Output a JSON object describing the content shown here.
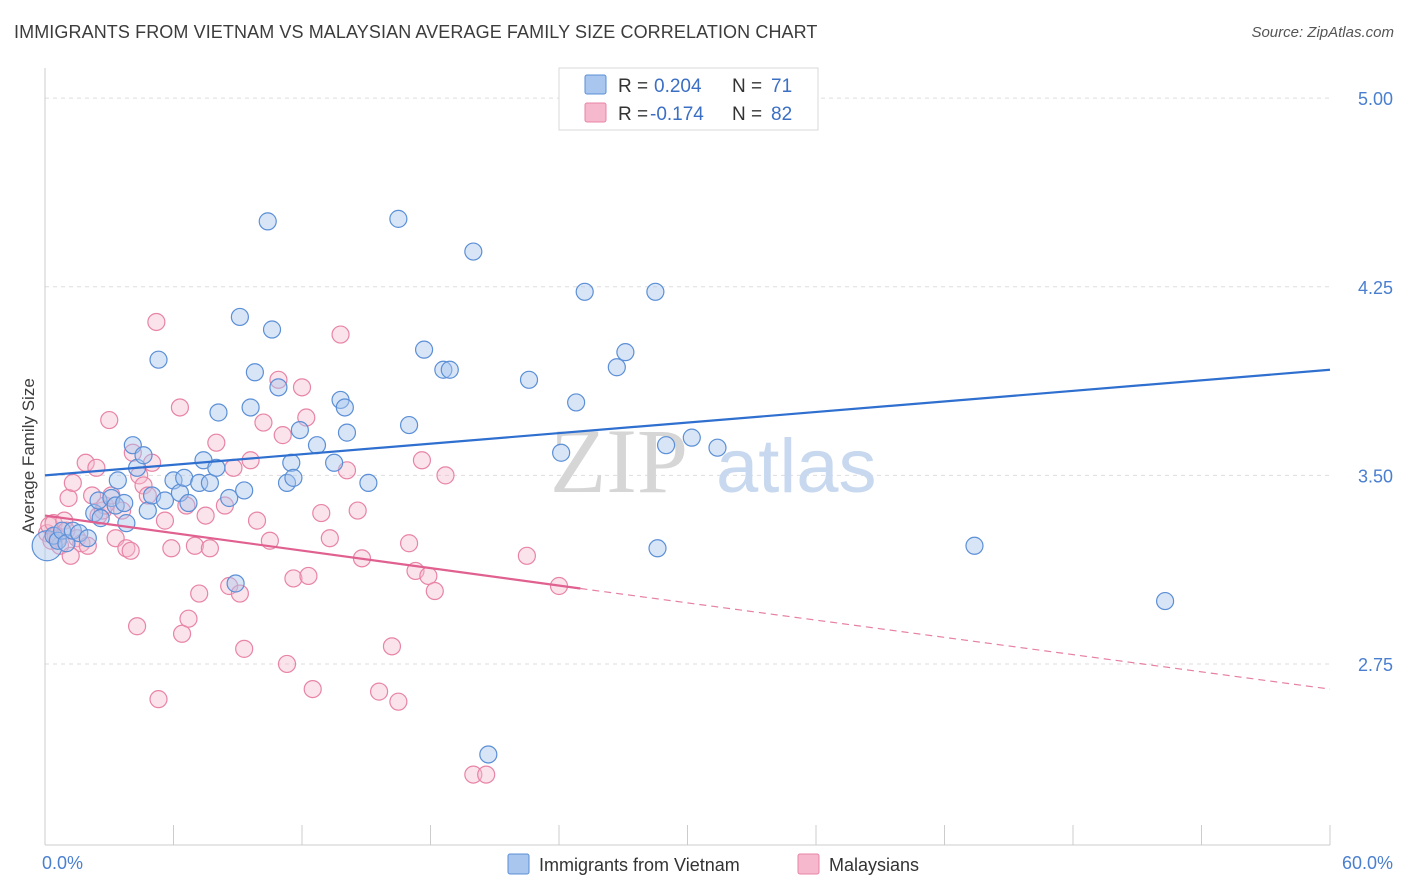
{
  "title": "IMMIGRANTS FROM VIETNAM VS MALAYSIAN AVERAGE FAMILY SIZE CORRELATION CHART",
  "source": "Source: ZipAtlas.com",
  "watermark": {
    "zip": "ZIP",
    "atlas": "atlas"
  },
  "colors": {
    "blue_fill": "#a9c6ee",
    "blue_stroke": "#5b8fd6",
    "blue_line": "#2f6fcf",
    "pink_fill": "#f5b8cc",
    "pink_stroke": "#e884a6",
    "pink_line": "#e0608f",
    "grid": "#dddddd",
    "axis_text": "#4a7fcf"
  },
  "legend": {
    "rows": [
      {
        "r_label": "R = ",
        "r_value": "0.204",
        "n_label": "N = ",
        "n_value": "71",
        "series": "blue"
      },
      {
        "r_label": "R = ",
        "r_value": "-0.174",
        "n_label": "N = ",
        "n_value": "82",
        "series": "pink"
      }
    ]
  },
  "chart_data": {
    "type": "scatter",
    "title": "IMMIGRANTS FROM VIETNAM VS MALAYSIAN AVERAGE FAMILY SIZE CORRELATION CHART",
    "xlabel": "",
    "ylabel": "Average Family Size",
    "xlim": [
      0,
      60
    ],
    "ylim": [
      2.03,
      5.12
    ],
    "x_tick_labels": [
      "0.0%",
      "60.0%"
    ],
    "y_ticks": [
      5.0,
      4.25,
      3.5,
      2.75
    ],
    "y_tick_labels": [
      "5.00",
      "4.25",
      "3.50",
      "2.75"
    ],
    "grid": true,
    "legend_position": "top-center",
    "series": [
      {
        "name": "Immigrants from Vietnam",
        "color": "blue",
        "trend": {
          "x": [
            0,
            60
          ],
          "y": [
            3.5,
            3.92
          ],
          "dashed_from": null
        },
        "points": [
          [
            0.1,
            3.22
          ],
          [
            0.4,
            3.26
          ],
          [
            0.6,
            3.24
          ],
          [
            0.8,
            3.28
          ],
          [
            1.0,
            3.23
          ],
          [
            1.3,
            3.28
          ],
          [
            1.6,
            3.27
          ],
          [
            2.0,
            3.25
          ],
          [
            2.3,
            3.35
          ],
          [
            2.5,
            3.4
          ],
          [
            2.6,
            3.33
          ],
          [
            3.1,
            3.41
          ],
          [
            3.3,
            3.38
          ],
          [
            3.4,
            3.48
          ],
          [
            3.7,
            3.39
          ],
          [
            3.8,
            3.31
          ],
          [
            4.1,
            3.62
          ],
          [
            4.3,
            3.53
          ],
          [
            4.6,
            3.58
          ],
          [
            4.8,
            3.36
          ],
          [
            5.0,
            3.42
          ],
          [
            5.3,
            3.96
          ],
          [
            5.6,
            3.4
          ],
          [
            6.0,
            3.48
          ],
          [
            6.3,
            3.43
          ],
          [
            6.5,
            3.49
          ],
          [
            6.7,
            3.39
          ],
          [
            7.2,
            3.47
          ],
          [
            7.4,
            3.56
          ],
          [
            7.7,
            3.47
          ],
          [
            8.0,
            3.53
          ],
          [
            8.1,
            3.75
          ],
          [
            8.6,
            3.41
          ],
          [
            8.9,
            3.07
          ],
          [
            9.1,
            4.13
          ],
          [
            9.3,
            3.44
          ],
          [
            9.6,
            3.77
          ],
          [
            9.8,
            3.91
          ],
          [
            10.4,
            4.51
          ],
          [
            10.6,
            4.08
          ],
          [
            10.9,
            3.85
          ],
          [
            11.3,
            3.47
          ],
          [
            11.5,
            3.55
          ],
          [
            11.6,
            3.49
          ],
          [
            11.9,
            3.68
          ],
          [
            12.7,
            3.62
          ],
          [
            13.5,
            3.55
          ],
          [
            13.8,
            3.8
          ],
          [
            14.0,
            3.77
          ],
          [
            14.1,
            3.67
          ],
          [
            15.1,
            3.47
          ],
          [
            16.5,
            4.52
          ],
          [
            17.0,
            3.7
          ],
          [
            17.7,
            4.0
          ],
          [
            18.6,
            3.92
          ],
          [
            18.9,
            3.92
          ],
          [
            20.0,
            4.39
          ],
          [
            20.7,
            2.39
          ],
          [
            22.6,
            3.88
          ],
          [
            24.1,
            3.59
          ],
          [
            24.8,
            3.79
          ],
          [
            25.2,
            4.23
          ],
          [
            26.7,
            3.93
          ],
          [
            27.1,
            3.99
          ],
          [
            28.5,
            4.23
          ],
          [
            28.6,
            3.21
          ],
          [
            29.0,
            3.62
          ],
          [
            30.2,
            3.65
          ],
          [
            31.4,
            3.61
          ],
          [
            43.4,
            3.22
          ],
          [
            52.3,
            3.0
          ]
        ]
      },
      {
        "name": "Malaysians",
        "color": "pink",
        "trend": {
          "x": [
            0,
            25
          ],
          "y": [
            3.34,
            3.05
          ],
          "dashed_to": [
            60,
            2.65
          ]
        },
        "points": [
          [
            0.1,
            3.27
          ],
          [
            0.2,
            3.3
          ],
          [
            0.3,
            3.24
          ],
          [
            0.4,
            3.31
          ],
          [
            0.5,
            3.26
          ],
          [
            0.6,
            3.25
          ],
          [
            0.7,
            3.22
          ],
          [
            0.9,
            3.32
          ],
          [
            1.0,
            3.28
          ],
          [
            1.1,
            3.41
          ],
          [
            1.2,
            3.18
          ],
          [
            1.3,
            3.47
          ],
          [
            1.5,
            3.25
          ],
          [
            1.7,
            3.23
          ],
          [
            1.9,
            3.55
          ],
          [
            2.0,
            3.22
          ],
          [
            2.2,
            3.42
          ],
          [
            2.4,
            3.53
          ],
          [
            2.5,
            3.34
          ],
          [
            2.7,
            3.36
          ],
          [
            2.8,
            3.38
          ],
          [
            3.0,
            3.72
          ],
          [
            3.1,
            3.42
          ],
          [
            3.3,
            3.25
          ],
          [
            3.6,
            3.36
          ],
          [
            3.8,
            3.21
          ],
          [
            4.0,
            3.2
          ],
          [
            4.1,
            3.59
          ],
          [
            4.3,
            2.9
          ],
          [
            4.4,
            3.5
          ],
          [
            4.6,
            3.46
          ],
          [
            4.8,
            3.42
          ],
          [
            5.0,
            3.55
          ],
          [
            5.2,
            4.11
          ],
          [
            5.3,
            2.61
          ],
          [
            5.6,
            3.32
          ],
          [
            5.9,
            3.21
          ],
          [
            6.3,
            3.77
          ],
          [
            6.4,
            2.87
          ],
          [
            6.6,
            3.38
          ],
          [
            6.7,
            2.93
          ],
          [
            7.0,
            3.22
          ],
          [
            7.2,
            3.03
          ],
          [
            7.5,
            3.34
          ],
          [
            7.7,
            3.21
          ],
          [
            8.0,
            3.63
          ],
          [
            8.4,
            3.38
          ],
          [
            8.6,
            3.06
          ],
          [
            8.8,
            3.53
          ],
          [
            9.1,
            3.03
          ],
          [
            9.3,
            2.81
          ],
          [
            9.6,
            3.56
          ],
          [
            9.9,
            3.32
          ],
          [
            10.2,
            3.71
          ],
          [
            10.5,
            3.24
          ],
          [
            10.9,
            3.88
          ],
          [
            11.1,
            3.66
          ],
          [
            11.3,
            2.75
          ],
          [
            11.6,
            3.09
          ],
          [
            12.0,
            3.85
          ],
          [
            12.2,
            3.73
          ],
          [
            12.3,
            3.1
          ],
          [
            12.5,
            2.65
          ],
          [
            12.9,
            3.35
          ],
          [
            13.3,
            3.25
          ],
          [
            13.8,
            4.06
          ],
          [
            14.1,
            3.52
          ],
          [
            14.6,
            3.36
          ],
          [
            14.8,
            3.17
          ],
          [
            15.6,
            2.64
          ],
          [
            16.2,
            2.82
          ],
          [
            16.5,
            2.6
          ],
          [
            17.0,
            3.23
          ],
          [
            17.3,
            3.12
          ],
          [
            17.6,
            3.56
          ],
          [
            17.9,
            3.1
          ],
          [
            18.2,
            3.04
          ],
          [
            18.7,
            3.5
          ],
          [
            20.0,
            2.31
          ],
          [
            20.6,
            2.31
          ],
          [
            22.5,
            3.18
          ],
          [
            24.0,
            3.06
          ]
        ]
      }
    ]
  },
  "bottom_legend": [
    {
      "label": "Immigrants from Vietnam",
      "series": "blue"
    },
    {
      "label": "Malaysians",
      "series": "pink"
    }
  ]
}
